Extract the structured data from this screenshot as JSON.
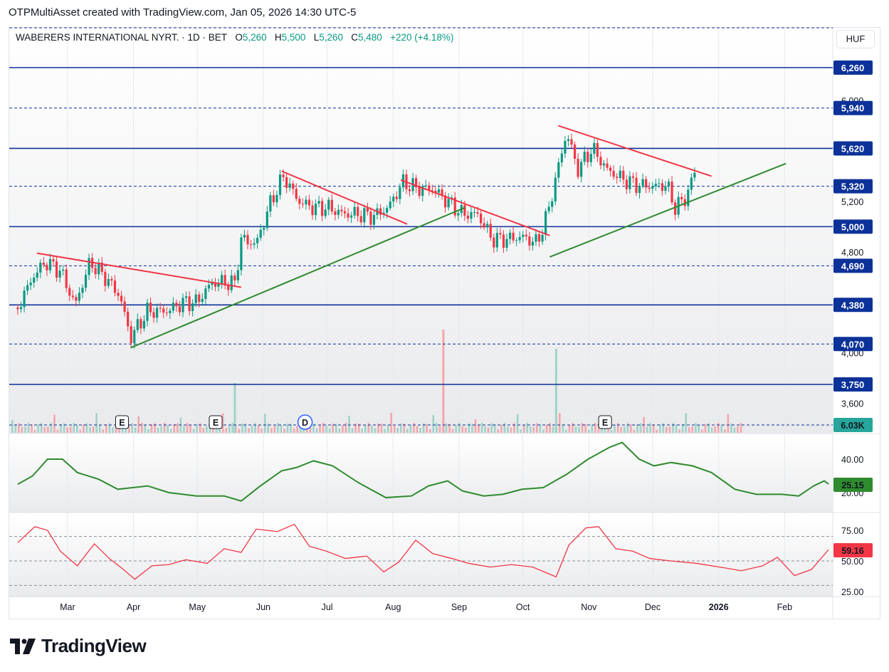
{
  "header": {
    "text": "OTPMultiAsset created with TradingView.com, Jan 05, 2026 14:30 UTC-5"
  },
  "legend": {
    "symbol": "WABERERS INTERNATIONAL NYRT. · 1D · BET",
    "o_label": "O",
    "o_value": "5,260",
    "h_label": "H",
    "h_value": "5,500",
    "l_label": "L",
    "l_value": "5,260",
    "c_label": "C",
    "c_value": "5,480",
    "change": "+220 (+4.18%)"
  },
  "currency": "HUF",
  "footer": {
    "brand": "TradingView"
  },
  "colors": {
    "up": "#089981",
    "down": "#f23645",
    "trend_down": "#f23645",
    "trend_up": "#2e8b2e",
    "level": "#0c3299",
    "osc1": "#2e8b2e",
    "osc2": "#f23645"
  },
  "chart_data": [
    {
      "type": "candlestick",
      "ylim": [
        3450,
        6350
      ],
      "price_ticks": [
        "6,000",
        "5,200",
        "4,800",
        "4,000",
        "3,600"
      ],
      "x_ticks": [
        "Mar",
        "Apr",
        "May",
        "Jun",
        "Jul",
        "Aug",
        "Sep",
        "Oct",
        "Nov",
        "Dec",
        "2026",
        "Feb"
      ],
      "levels": [
        {
          "value": 6260,
          "label": "6,260",
          "style": "solid"
        },
        {
          "value": 5940,
          "label": "5,940",
          "style": "dashed"
        },
        {
          "value": 5620,
          "label": "5,620",
          "style": "solid"
        },
        {
          "value": 5320,
          "label": "5,320",
          "style": "dashed"
        },
        {
          "value": 5000,
          "label": "5,000",
          "style": "solid"
        },
        {
          "value": 4690,
          "label": "4,690",
          "style": "dashed"
        },
        {
          "value": 4380,
          "label": "4,380",
          "style": "solid"
        },
        {
          "value": 4070,
          "label": "4,070",
          "style": "dashed"
        },
        {
          "value": 3750,
          "label": "3,750",
          "style": "solid"
        }
      ],
      "close_points": [
        [
          "2025-02-20",
          4360
        ],
        [
          "2025-02-27",
          4600
        ],
        [
          "2025-03-05",
          4720
        ],
        [
          "2025-03-12",
          4650
        ],
        [
          "2025-03-19",
          4380
        ],
        [
          "2025-03-26",
          4720
        ],
        [
          "2025-04-02",
          4600
        ],
        [
          "2025-04-09",
          4450
        ],
        [
          "2025-04-14",
          4120
        ],
        [
          "2025-04-22",
          4330
        ],
        [
          "2025-05-01",
          4330
        ],
        [
          "2025-05-09",
          4400
        ],
        [
          "2025-05-15",
          4400
        ],
        [
          "2025-05-22",
          4550
        ],
        [
          "2025-05-27",
          4560
        ],
        [
          "2025-06-02",
          4550
        ],
        [
          "2025-06-05",
          4900
        ],
        [
          "2025-06-12",
          4860
        ],
        [
          "2025-06-19",
          5200
        ],
        [
          "2025-06-25",
          5400
        ],
        [
          "2025-07-02",
          5200
        ],
        [
          "2025-07-09",
          5150
        ],
        [
          "2025-07-16",
          5150
        ],
        [
          "2025-07-23",
          5100
        ],
        [
          "2025-07-30",
          5100
        ],
        [
          "2025-08-06",
          5080
        ],
        [
          "2025-08-13",
          5150
        ],
        [
          "2025-08-20",
          5350
        ],
        [
          "2025-08-27",
          5300
        ],
        [
          "2025-09-03",
          5300
        ],
        [
          "2025-09-10",
          5200
        ],
        [
          "2025-09-17",
          5100
        ],
        [
          "2025-09-24",
          5100
        ],
        [
          "2025-10-01",
          4900
        ],
        [
          "2025-10-08",
          4900
        ],
        [
          "2025-10-15",
          4920
        ],
        [
          "2025-10-22",
          4870
        ],
        [
          "2025-10-27",
          5100
        ],
        [
          "2025-10-31",
          5400
        ],
        [
          "2025-11-05",
          5750
        ],
        [
          "2025-11-10",
          5450
        ],
        [
          "2025-11-17",
          5620
        ],
        [
          "2025-11-24",
          5450
        ],
        [
          "2025-12-01",
          5380
        ],
        [
          "2025-12-08",
          5330
        ],
        [
          "2025-12-15",
          5320
        ],
        [
          "2025-12-22",
          5330
        ],
        [
          "2025-12-26",
          5150
        ],
        [
          "2025-12-31",
          5230
        ],
        [
          "2026-01-05",
          5480
        ]
      ],
      "trendlines_down": [
        [
          [
            "2025-03-01",
            4790
          ],
          [
            "2025-06-05",
            4520
          ]
        ],
        [
          [
            "2025-06-24",
            5440
          ],
          [
            "2025-08-22",
            5020
          ]
        ],
        [
          [
            "2025-08-19",
            5370
          ],
          [
            "2025-10-28",
            4930
          ]
        ],
        [
          [
            "2025-11-01",
            5800
          ],
          [
            "2026-01-12",
            5400
          ]
        ]
      ],
      "trendlines_up": [
        [
          [
            "2025-04-14",
            4040
          ],
          [
            "2025-09-18",
            5150
          ]
        ],
        [
          [
            "2025-10-28",
            4760
          ],
          [
            "2026-02-16",
            5500
          ]
        ]
      ],
      "earnings_markers": [
        "E",
        "E",
        "E"
      ],
      "dividend_marker": "D",
      "volume_label": "6.03K",
      "volume_spikes": [
        [
          "2025-06-02",
          "up"
        ],
        [
          "2025-09-08",
          "down"
        ],
        [
          "2025-10-31",
          "up"
        ]
      ]
    },
    {
      "type": "line",
      "name": "oscillator-1",
      "ticks": [
        "40.00",
        "20.00"
      ],
      "ylim": [
        5,
        55
      ],
      "last_value": "25.15",
      "points": [
        [
          "2025-02-20",
          25
        ],
        [
          "2025-02-27",
          30
        ],
        [
          "2025-03-06",
          40
        ],
        [
          "2025-03-13",
          40
        ],
        [
          "2025-03-20",
          32
        ],
        [
          "2025-03-30",
          28
        ],
        [
          "2025-04-08",
          22
        ],
        [
          "2025-04-15",
          23
        ],
        [
          "2025-04-22",
          24
        ],
        [
          "2025-05-02",
          20
        ],
        [
          "2025-05-15",
          18
        ],
        [
          "2025-05-28",
          18
        ],
        [
          "2025-06-05",
          15
        ],
        [
          "2025-06-14",
          24
        ],
        [
          "2025-06-24",
          33
        ],
        [
          "2025-07-01",
          35
        ],
        [
          "2025-07-09",
          39
        ],
        [
          "2025-07-18",
          36
        ],
        [
          "2025-07-30",
          26
        ],
        [
          "2025-08-12",
          17
        ],
        [
          "2025-08-24",
          18
        ],
        [
          "2025-09-01",
          24
        ],
        [
          "2025-09-10",
          27
        ],
        [
          "2025-09-17",
          21
        ],
        [
          "2025-09-27",
          18
        ],
        [
          "2025-10-06",
          19
        ],
        [
          "2025-10-15",
          22
        ],
        [
          "2025-10-25",
          23
        ],
        [
          "2025-11-05",
          31
        ],
        [
          "2025-11-15",
          40
        ],
        [
          "2025-11-25",
          47
        ],
        [
          "2025-12-01",
          50
        ],
        [
          "2025-12-09",
          40
        ],
        [
          "2025-12-16",
          36
        ],
        [
          "2025-12-24",
          38
        ],
        [
          "2026-01-03",
          36
        ],
        [
          "2026-01-12",
          32
        ],
        [
          "2026-01-23",
          22
        ],
        [
          "2026-02-02",
          19
        ],
        [
          "2026-02-14",
          19
        ],
        [
          "2026-02-22",
          18
        ],
        [
          "2026-03-01",
          24
        ],
        [
          "2026-03-06",
          27
        ],
        [
          "2026-03-08",
          25.15
        ]
      ]
    },
    {
      "type": "line",
      "name": "oscillator-2",
      "ticks": [
        "75.00",
        "50.00",
        "25.00"
      ],
      "ylim": [
        20,
        85
      ],
      "bands": [
        70,
        50,
        30
      ],
      "last_value": "59.16",
      "points": [
        [
          "2025-02-20",
          65
        ],
        [
          "2025-02-28",
          78
        ],
        [
          "2025-03-06",
          75
        ],
        [
          "2025-03-12",
          58
        ],
        [
          "2025-03-20",
          46
        ],
        [
          "2025-03-28",
          64
        ],
        [
          "2025-04-04",
          52
        ],
        [
          "2025-04-10",
          44
        ],
        [
          "2025-04-16",
          35
        ],
        [
          "2025-04-24",
          46
        ],
        [
          "2025-05-02",
          47
        ],
        [
          "2025-05-10",
          51
        ],
        [
          "2025-05-20",
          48
        ],
        [
          "2025-05-28",
          60
        ],
        [
          "2025-06-05",
          57
        ],
        [
          "2025-06-12",
          76
        ],
        [
          "2025-06-22",
          74
        ],
        [
          "2025-06-30",
          80
        ],
        [
          "2025-07-07",
          62
        ],
        [
          "2025-07-15",
          58
        ],
        [
          "2025-07-24",
          52
        ],
        [
          "2025-08-03",
          54
        ],
        [
          "2025-08-11",
          41
        ],
        [
          "2025-08-18",
          49
        ],
        [
          "2025-08-26",
          67
        ],
        [
          "2025-09-03",
          56
        ],
        [
          "2025-09-12",
          52
        ],
        [
          "2025-09-20",
          48
        ],
        [
          "2025-09-30",
          45
        ],
        [
          "2025-10-10",
          47
        ],
        [
          "2025-10-20",
          45
        ],
        [
          "2025-10-31",
          37
        ],
        [
          "2025-11-06",
          63
        ],
        [
          "2025-11-14",
          77
        ],
        [
          "2025-11-20",
          78
        ],
        [
          "2025-11-28",
          60
        ],
        [
          "2025-12-06",
          58
        ],
        [
          "2025-12-14",
          52
        ],
        [
          "2025-12-24",
          50
        ],
        [
          "2026-01-05",
          48
        ],
        [
          "2026-01-16",
          45
        ],
        [
          "2026-01-26",
          42
        ],
        [
          "2026-02-05",
          46
        ],
        [
          "2026-02-12",
          53
        ],
        [
          "2026-02-20",
          38
        ],
        [
          "2026-02-28",
          43
        ],
        [
          "2026-03-08",
          59.16
        ]
      ]
    }
  ]
}
